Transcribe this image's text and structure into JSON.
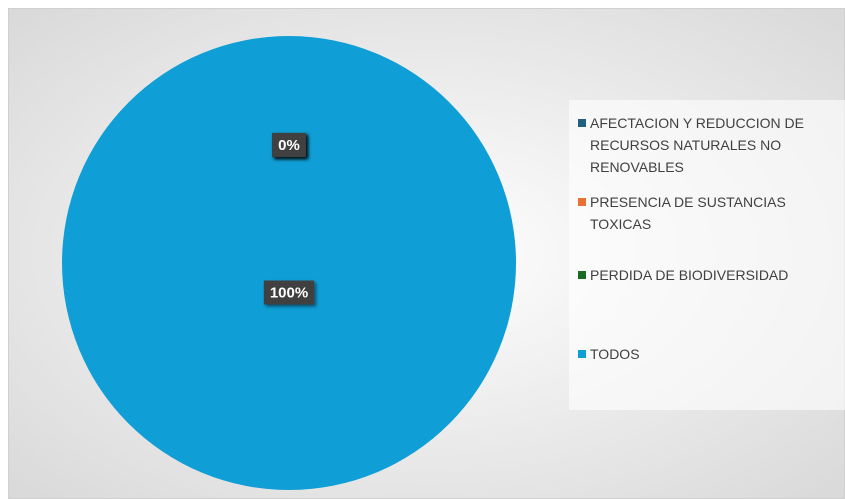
{
  "chart_data": {
    "type": "pie",
    "categories": [
      "AFECTACION Y REDUCCION DE RECURSOS NATURALES NO RENOVABLES",
      "PRESENCIA DE SUSTANCIAS TOXICAS",
      "PERDIDA DE BIODIVERSIDAD",
      "TODOS"
    ],
    "values": [
      0,
      0,
      0,
      100
    ],
    "value_labels": [
      "0%",
      "0%",
      "0%",
      "100%"
    ],
    "colors": [
      "#215f7f",
      "#e97132",
      "#196b24",
      "#0f9ed5"
    ],
    "legend": "right"
  }
}
